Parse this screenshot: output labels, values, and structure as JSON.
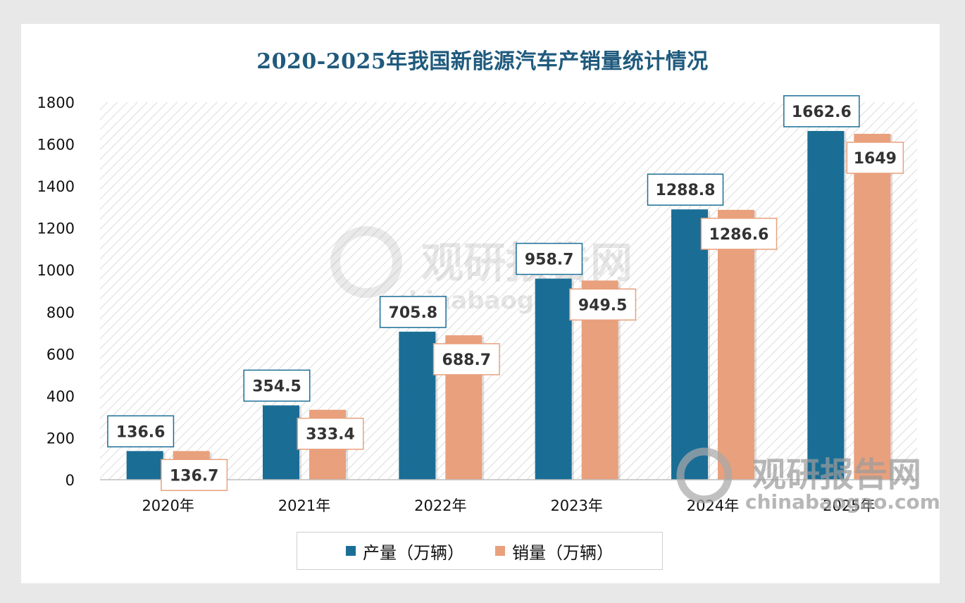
{
  "chart_data": {
    "type": "bar",
    "title": "2020-2025年我国新能源汽车产销量统计情况",
    "categories": [
      "2020年",
      "2021年",
      "2022年",
      "2023年",
      "2024年",
      "2025年"
    ],
    "series": [
      {
        "name": "产量（万辆）",
        "color": "#1a6e96",
        "values": [
          136.6,
          354.5,
          705.8,
          958.7,
          1288.8,
          1662.6
        ],
        "labels": [
          "136.6",
          "354.5",
          "705.8",
          "958.7",
          "1288.8",
          "1662.6"
        ]
      },
      {
        "name": "销量（万辆）",
        "color": "#e9a07c",
        "values": [
          136.7,
          333.4,
          688.7,
          949.5,
          1286.6,
          1649
        ],
        "labels": [
          "136.7",
          "333.4",
          "688.7",
          "949.5",
          "1286.6",
          "1649"
        ]
      }
    ],
    "ylim": [
      0,
      1800
    ],
    "yticks": [
      0,
      200,
      400,
      600,
      800,
      1000,
      1200,
      1400,
      1600,
      1800
    ],
    "xlabel": "",
    "ylabel": "",
    "legend_position": "bottom"
  },
  "watermark": {
    "name": "观研报告网",
    "domain": "chinabaogao.com"
  }
}
